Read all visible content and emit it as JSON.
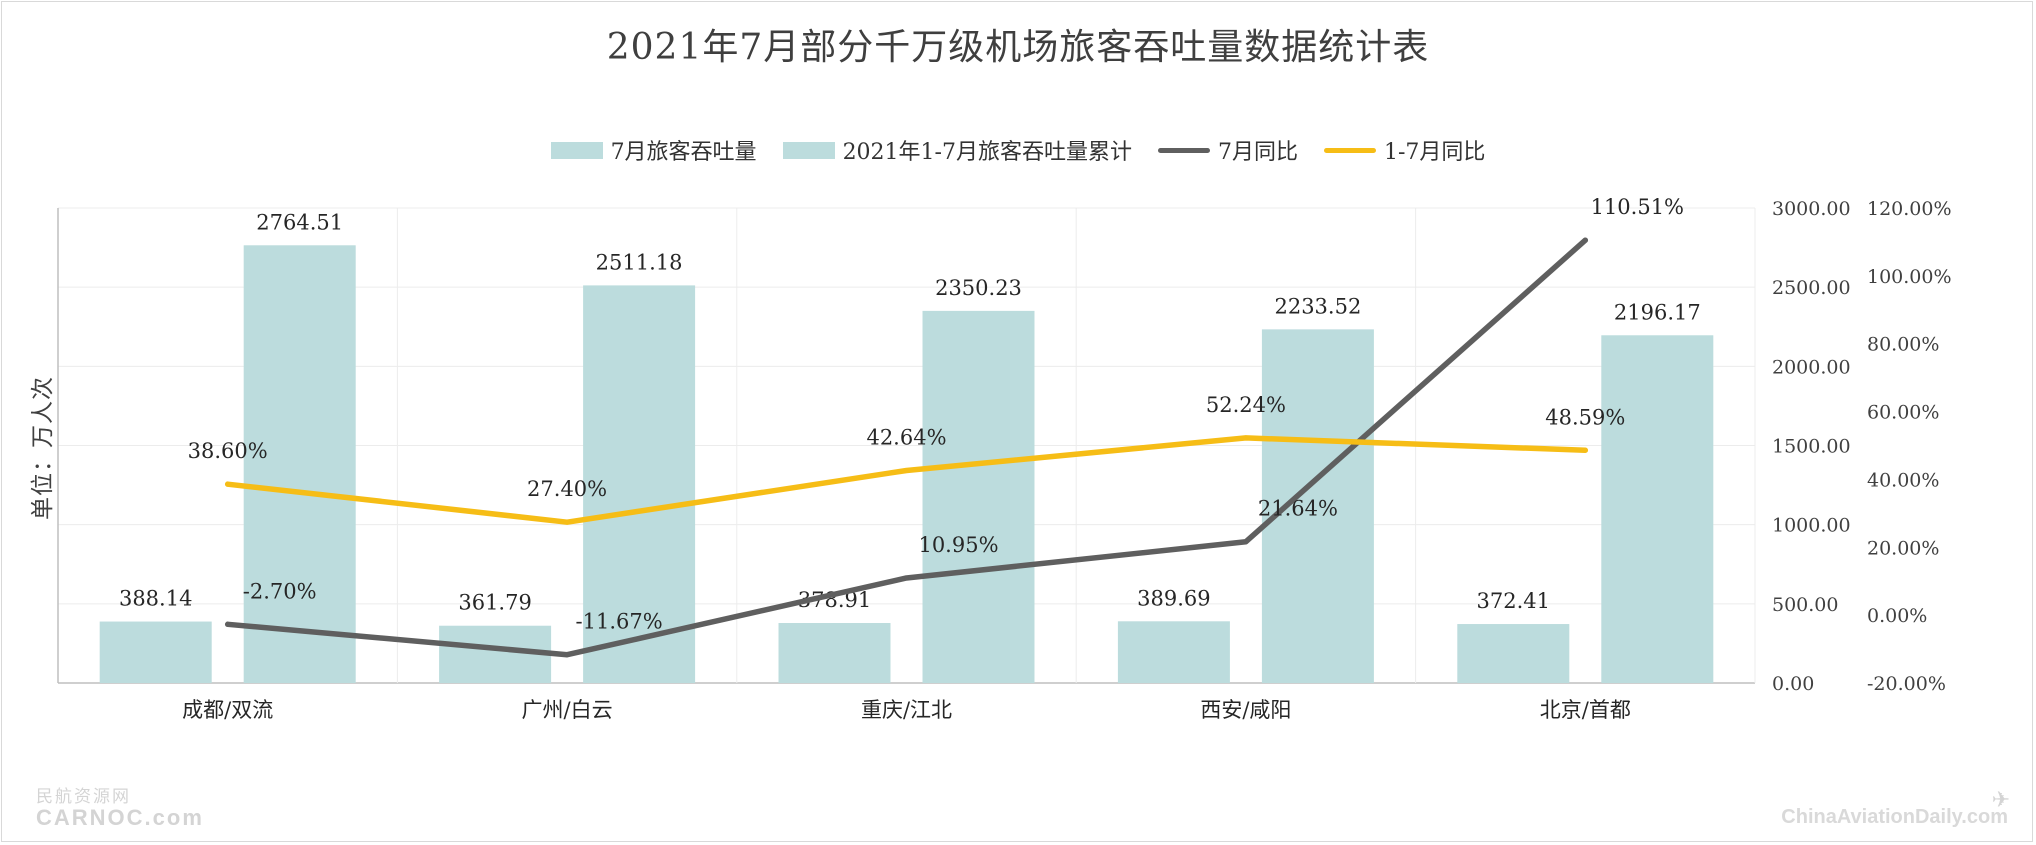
{
  "chart_data": {
    "type": "bar",
    "title": "2021年7月部分千万级机场旅客吞吐量数据统计表",
    "ylabel": "单位：万人次",
    "categories": [
      "成都/双流",
      "广州/白云",
      "重庆/江北",
      "西安/咸阳",
      "北京/首都"
    ],
    "bar_series": [
      {
        "name": "7月旅客吞吐量",
        "values": [
          388.14,
          361.79,
          378.91,
          389.69,
          372.41
        ],
        "labels": [
          "388.14",
          "361.79",
          "378.91",
          "389.69",
          "372.41"
        ],
        "color": "#bcdcdd"
      },
      {
        "name": "2021年1-7月旅客吞吐量累计",
        "values": [
          2764.51,
          2511.18,
          2350.23,
          2233.52,
          2196.17
        ],
        "labels": [
          "2764.51",
          "2511.18",
          "2350.23",
          "2233.52",
          "2196.17"
        ],
        "color": "#bcdcdd"
      }
    ],
    "line_series": [
      {
        "name": "7月同比",
        "values": [
          -2.7,
          -11.67,
          10.95,
          21.64,
          110.51
        ],
        "labels": [
          "-2.70%",
          "-11.67%",
          "10.95%",
          "21.64%",
          "110.51%"
        ],
        "color": "#5f5f5f"
      },
      {
        "name": "1-7月同比",
        "values": [
          38.6,
          27.4,
          42.64,
          52.24,
          48.59
        ],
        "labels": [
          "38.60%",
          "27.40%",
          "42.64%",
          "52.24%",
          "48.59%"
        ],
        "color": "#f6bd16"
      }
    ],
    "y_axis": {
      "min": 0,
      "max": 3000,
      "ticks": [
        "0.00",
        "500.00",
        "1000.00",
        "1500.00",
        "2000.00",
        "2500.00",
        "3000.00"
      ],
      "tick_values": [
        0,
        500,
        1000,
        1500,
        2000,
        2500,
        3000
      ]
    },
    "y2_axis": {
      "min": -20,
      "max": 120,
      "ticks": [
        "-20.00%",
        "0.00%",
        "20.00%",
        "40.00%",
        "60.00%",
        "80.00%",
        "100.00%",
        "120.00%"
      ],
      "tick_values": [
        -20,
        0,
        20,
        40,
        60,
        80,
        100,
        120
      ]
    },
    "grid": true,
    "legend_position": "top"
  },
  "watermarks": {
    "left_cn": "民航资源网",
    "left_en": "CARNOC.com",
    "right_en": "ChinaAviationDaily.com"
  }
}
